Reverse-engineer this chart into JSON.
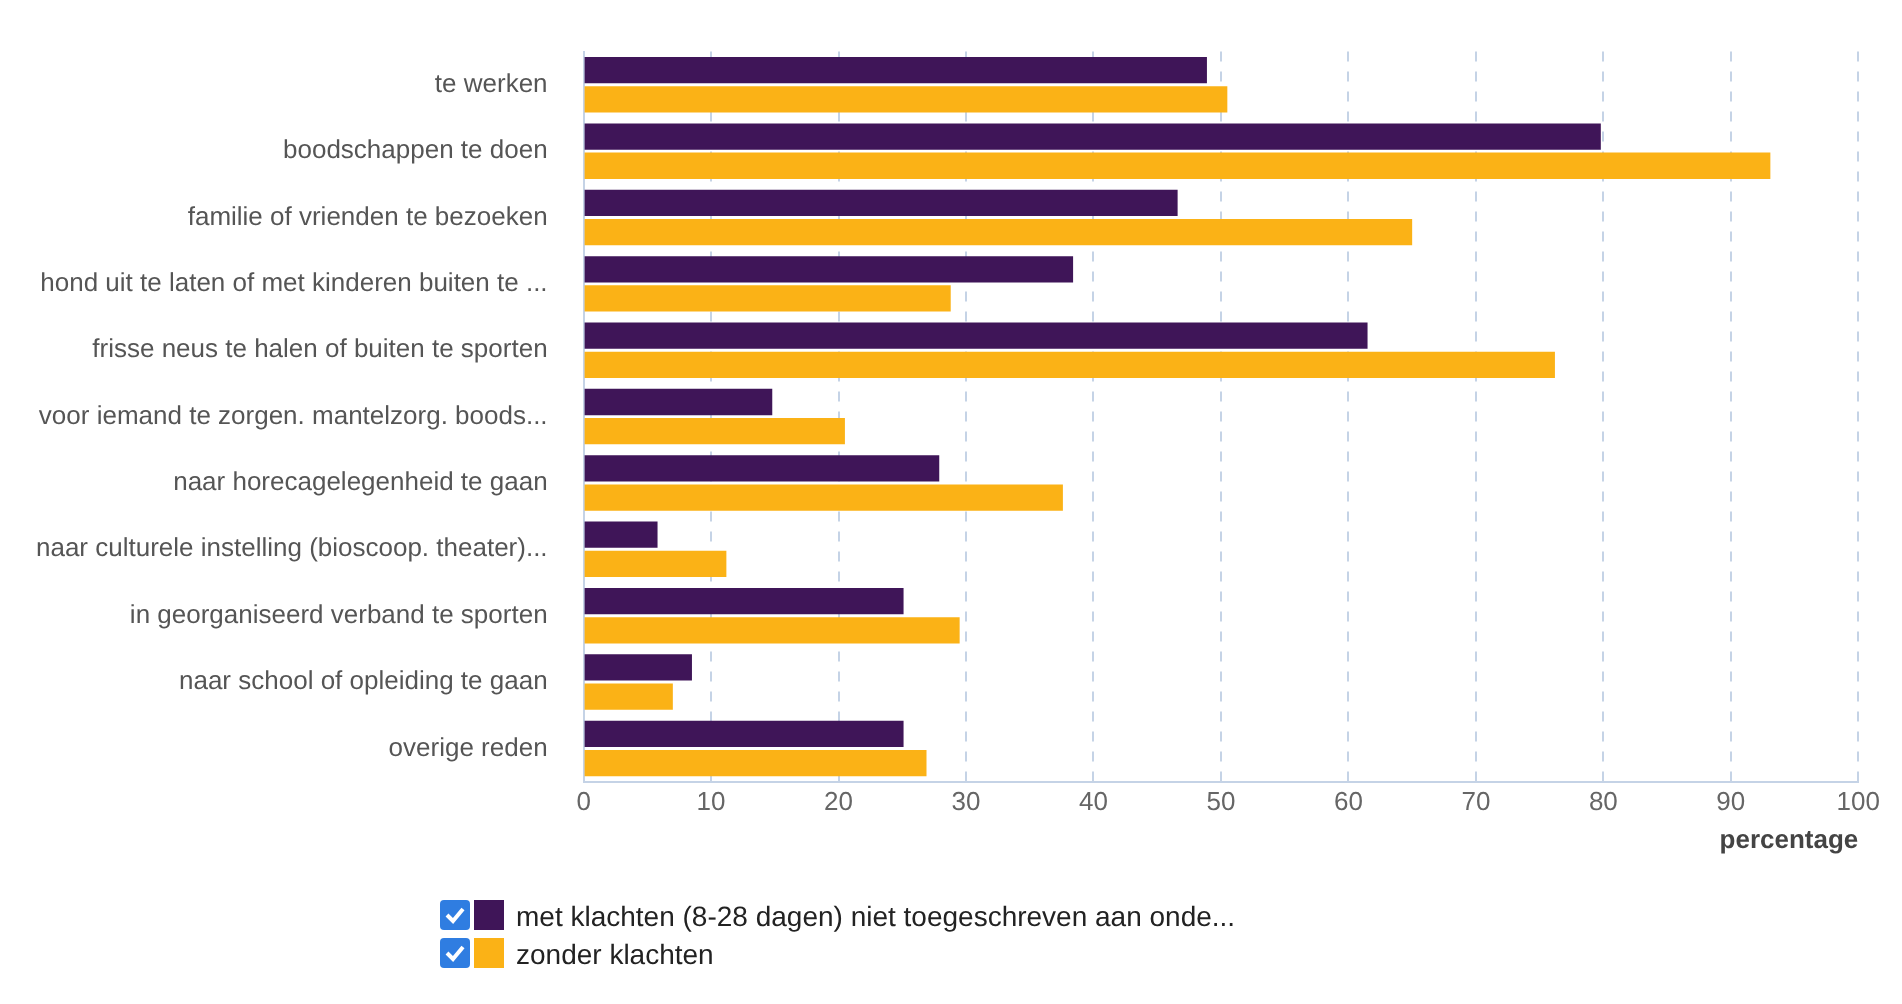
{
  "chart_data": {
    "type": "bar",
    "orientation": "horizontal",
    "categories": [
      "te werken",
      "boodschappen te doen",
      "familie of vrienden te bezoeken",
      "hond uit te laten of met kinderen buiten te ...",
      "frisse neus te halen of buiten te sporten",
      "voor iemand te zorgen. mantelzorg. boods...",
      "naar horecagelegenheid te gaan",
      "naar culturele instelling (bioscoop. theater)...",
      "in georganiseerd verband te sporten",
      "naar school of opleiding te gaan",
      "overige reden"
    ],
    "series": [
      {
        "name": "met klachten (8-28 dagen) niet toegeschreven aan onde...",
        "color": "#3f1558",
        "values": [
          48.9,
          79.8,
          46.6,
          38.4,
          61.5,
          14.8,
          27.9,
          5.8,
          25.1,
          8.5,
          25.1
        ]
      },
      {
        "name": "zonder klachten",
        "color": "#fbb216",
        "values": [
          50.5,
          93.1,
          65.0,
          28.8,
          76.2,
          20.5,
          37.6,
          11.2,
          29.5,
          7.0,
          26.9
        ]
      }
    ],
    "xlabel": "percentage",
    "xlim": [
      0,
      100
    ],
    "xticks": [
      0,
      10,
      20,
      30,
      40,
      50,
      60,
      70,
      80,
      90,
      100
    ],
    "grid": "x",
    "legend": "bottom"
  }
}
